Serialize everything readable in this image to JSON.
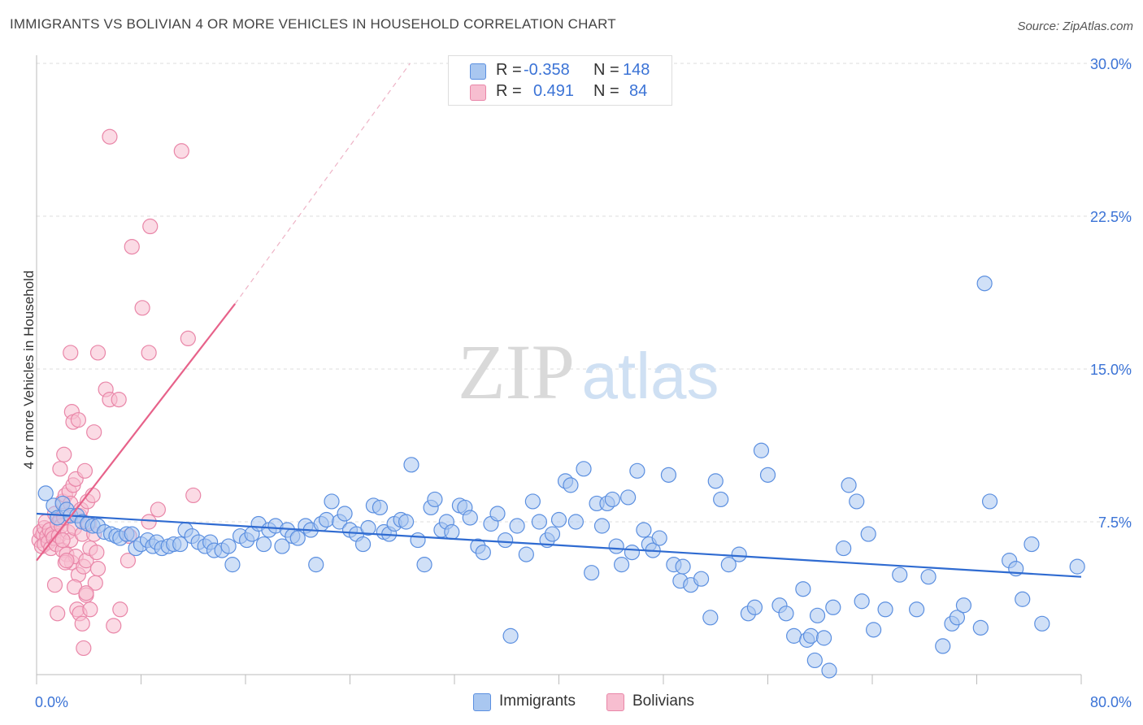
{
  "title": "IMMIGRANTS VS BOLIVIAN 4 OR MORE VEHICLES IN HOUSEHOLD CORRELATION CHART",
  "source": "Source: ZipAtlas.com",
  "watermark": {
    "zip": "ZIP",
    "atlas": "atlas"
  },
  "legend": {
    "r_label": "R =",
    "n_label": "N =",
    "rows": [
      {
        "r": "-0.358",
        "n": "148",
        "color": "#a9c7f0",
        "border": "#5b8fe0"
      },
      {
        "r": "0.491",
        "n": "84",
        "color": "#f7bed0",
        "border": "#e986a8"
      }
    ]
  },
  "bottom_legend": [
    "Immigrants",
    "Bolivians"
  ],
  "chart_data": {
    "type": "scatter",
    "xlabel": "",
    "ylabel": "4 or more Vehicles in Household",
    "xlim": [
      0,
      80
    ],
    "ylim": [
      0,
      30
    ],
    "x_tick_labels": [
      "0.0%",
      "80.0%"
    ],
    "y_ticks": [
      7.5,
      15.0,
      22.5,
      30.0
    ],
    "y_tick_labels": [
      "7.5%",
      "15.0%",
      "22.5%",
      "30.0%"
    ],
    "grid": true,
    "series": [
      {
        "name": "Immigrants",
        "color": "#5b8fe0",
        "fill": "#a9c7f0",
        "line_color": "#2f6bd1",
        "trend": {
          "x0": 0,
          "y0": 7.9,
          "x1": 80,
          "y1": 4.8
        },
        "points": [
          [
            0.7,
            8.9
          ],
          [
            1.3,
            8.3
          ],
          [
            1.6,
            7.7
          ],
          [
            2.0,
            8.4
          ],
          [
            2.3,
            8.1
          ],
          [
            2.6,
            7.8
          ],
          [
            3.1,
            7.8
          ],
          [
            3.5,
            7.5
          ],
          [
            3.9,
            7.4
          ],
          [
            4.3,
            7.3
          ],
          [
            4.7,
            7.3
          ],
          [
            5.2,
            7.0
          ],
          [
            5.7,
            6.9
          ],
          [
            6.1,
            6.8
          ],
          [
            6.4,
            6.7
          ],
          [
            6.9,
            6.9
          ],
          [
            7.3,
            6.9
          ],
          [
            7.6,
            6.2
          ],
          [
            8.0,
            6.4
          ],
          [
            8.5,
            6.6
          ],
          [
            8.9,
            6.3
          ],
          [
            9.2,
            6.5
          ],
          [
            9.6,
            6.2
          ],
          [
            10.1,
            6.3
          ],
          [
            10.5,
            6.4
          ],
          [
            11.0,
            6.4
          ],
          [
            11.4,
            7.1
          ],
          [
            11.9,
            6.8
          ],
          [
            12.4,
            6.5
          ],
          [
            12.9,
            6.3
          ],
          [
            13.3,
            6.5
          ],
          [
            13.6,
            6.1
          ],
          [
            14.2,
            6.1
          ],
          [
            14.7,
            6.3
          ],
          [
            15.0,
            5.4
          ],
          [
            15.6,
            6.8
          ],
          [
            16.1,
            6.6
          ],
          [
            16.5,
            6.9
          ],
          [
            17.0,
            7.4
          ],
          [
            17.4,
            6.4
          ],
          [
            17.8,
            7.1
          ],
          [
            18.3,
            7.3
          ],
          [
            18.8,
            6.3
          ],
          [
            19.2,
            7.1
          ],
          [
            19.6,
            6.8
          ],
          [
            20.0,
            6.7
          ],
          [
            20.6,
            7.3
          ],
          [
            21.0,
            7.1
          ],
          [
            21.4,
            5.4
          ],
          [
            21.8,
            7.4
          ],
          [
            22.2,
            7.6
          ],
          [
            22.6,
            8.5
          ],
          [
            23.2,
            7.5
          ],
          [
            23.6,
            7.9
          ],
          [
            24.0,
            7.1
          ],
          [
            24.5,
            6.9
          ],
          [
            25.0,
            6.4
          ],
          [
            25.4,
            7.2
          ],
          [
            25.8,
            8.3
          ],
          [
            26.3,
            8.2
          ],
          [
            26.6,
            7.0
          ],
          [
            27.0,
            6.9
          ],
          [
            27.4,
            7.4
          ],
          [
            27.9,
            7.6
          ],
          [
            28.3,
            7.5
          ],
          [
            28.7,
            10.3
          ],
          [
            29.2,
            6.6
          ],
          [
            29.7,
            5.4
          ],
          [
            30.2,
            8.2
          ],
          [
            30.5,
            8.6
          ],
          [
            31.0,
            7.1
          ],
          [
            31.4,
            7.5
          ],
          [
            31.8,
            7.0
          ],
          [
            32.4,
            8.3
          ],
          [
            32.8,
            8.2
          ],
          [
            33.2,
            7.7
          ],
          [
            33.8,
            6.3
          ],
          [
            34.2,
            6.0
          ],
          [
            34.8,
            7.4
          ],
          [
            35.3,
            7.9
          ],
          [
            35.9,
            6.6
          ],
          [
            36.3,
            1.9
          ],
          [
            36.8,
            7.3
          ],
          [
            37.5,
            5.9
          ],
          [
            38.0,
            8.5
          ],
          [
            38.5,
            7.5
          ],
          [
            39.1,
            6.6
          ],
          [
            39.5,
            6.9
          ],
          [
            40.0,
            7.6
          ],
          [
            40.5,
            9.5
          ],
          [
            40.9,
            9.3
          ],
          [
            41.3,
            7.5
          ],
          [
            41.9,
            10.1
          ],
          [
            42.5,
            5.0
          ],
          [
            42.9,
            8.4
          ],
          [
            43.3,
            7.3
          ],
          [
            43.7,
            8.4
          ],
          [
            44.1,
            8.6
          ],
          [
            44.4,
            6.3
          ],
          [
            44.8,
            5.4
          ],
          [
            45.3,
            8.7
          ],
          [
            45.6,
            6.0
          ],
          [
            46.0,
            10.0
          ],
          [
            46.5,
            7.1
          ],
          [
            46.9,
            6.4
          ],
          [
            47.2,
            6.1
          ],
          [
            47.7,
            6.7
          ],
          [
            48.4,
            9.8
          ],
          [
            48.8,
            5.4
          ],
          [
            49.3,
            4.6
          ],
          [
            49.5,
            5.3
          ],
          [
            50.1,
            4.4
          ],
          [
            50.9,
            4.7
          ],
          [
            51.6,
            2.8
          ],
          [
            52.0,
            9.5
          ],
          [
            52.4,
            8.6
          ],
          [
            53.0,
            5.4
          ],
          [
            53.8,
            5.9
          ],
          [
            54.5,
            3.0
          ],
          [
            55.0,
            3.3
          ],
          [
            55.5,
            11.0
          ],
          [
            56.0,
            9.8
          ],
          [
            56.9,
            3.4
          ],
          [
            57.4,
            3.0
          ],
          [
            58.0,
            1.9
          ],
          [
            58.7,
            4.2
          ],
          [
            59.0,
            1.7
          ],
          [
            59.3,
            1.9
          ],
          [
            59.8,
            2.9
          ],
          [
            60.3,
            1.8
          ],
          [
            61.0,
            3.3
          ],
          [
            61.8,
            6.2
          ],
          [
            62.2,
            9.3
          ],
          [
            62.8,
            8.5
          ],
          [
            63.2,
            3.6
          ],
          [
            63.7,
            6.9
          ],
          [
            64.1,
            2.2
          ],
          [
            65.0,
            3.2
          ],
          [
            66.1,
            4.9
          ],
          [
            67.4,
            3.2
          ],
          [
            68.3,
            4.8
          ],
          [
            69.4,
            1.4
          ],
          [
            70.1,
            2.5
          ],
          [
            70.5,
            2.8
          ],
          [
            71.0,
            3.4
          ],
          [
            72.3,
            2.3
          ],
          [
            73.0,
            8.5
          ],
          [
            74.5,
            5.6
          ],
          [
            75.0,
            5.2
          ],
          [
            75.5,
            3.7
          ],
          [
            76.2,
            6.4
          ],
          [
            77.0,
            2.5
          ],
          [
            79.7,
            5.3
          ],
          [
            72.6,
            19.2
          ],
          [
            59.6,
            0.7
          ],
          [
            60.7,
            0.2
          ]
        ]
      },
      {
        "name": "Bolivians",
        "color": "#e986a8",
        "fill": "#f7bed0",
        "line_color": "#e7628a",
        "trend": {
          "x0": 0,
          "y0": 5.6,
          "x1": 15.2,
          "y1": 18.2
        },
        "trend_dashed": {
          "x0": 15.2,
          "y0": 18.2,
          "x1": 28.6,
          "y1": 30.0
        },
        "points": [
          [
            0.2,
            6.6
          ],
          [
            0.3,
            7.0
          ],
          [
            0.4,
            6.3
          ],
          [
            0.5,
            6.9
          ],
          [
            0.6,
            7.2
          ],
          [
            0.6,
            6.4
          ],
          [
            0.7,
            7.5
          ],
          [
            0.8,
            6.8
          ],
          [
            0.9,
            6.5
          ],
          [
            1.0,
            7.1
          ],
          [
            1.1,
            6.2
          ],
          [
            1.2,
            6.9
          ],
          [
            1.3,
            6.7
          ],
          [
            1.4,
            7.9
          ],
          [
            1.5,
            6.4
          ],
          [
            1.6,
            7.4
          ],
          [
            1.7,
            6.8
          ],
          [
            1.8,
            7.6
          ],
          [
            1.9,
            7.3
          ],
          [
            2.0,
            8.5
          ],
          [
            2.0,
            6.1
          ],
          [
            2.1,
            7.7
          ],
          [
            2.2,
            8.8
          ],
          [
            2.3,
            5.9
          ],
          [
            2.4,
            7.0
          ],
          [
            2.5,
            9.0
          ],
          [
            2.6,
            8.4
          ],
          [
            2.6,
            6.6
          ],
          [
            2.7,
            5.5
          ],
          [
            2.8,
            9.3
          ],
          [
            2.9,
            7.2
          ],
          [
            3.0,
            5.8
          ],
          [
            3.0,
            9.6
          ],
          [
            3.2,
            4.9
          ],
          [
            3.3,
            7.8
          ],
          [
            3.4,
            8.1
          ],
          [
            3.5,
            6.9
          ],
          [
            3.6,
            5.3
          ],
          [
            3.7,
            10.0
          ],
          [
            3.8,
            5.6
          ],
          [
            3.9,
            8.5
          ],
          [
            4.0,
            7.4
          ],
          [
            4.1,
            6.2
          ],
          [
            4.3,
            8.8
          ],
          [
            4.4,
            6.9
          ],
          [
            4.5,
            4.5
          ],
          [
            4.6,
            6.0
          ],
          [
            4.7,
            5.2
          ],
          [
            1.4,
            4.4
          ],
          [
            1.6,
            3.0
          ],
          [
            2.2,
            5.5
          ],
          [
            2.3,
            5.6
          ],
          [
            2.9,
            4.3
          ],
          [
            3.1,
            3.2
          ],
          [
            3.3,
            3.0
          ],
          [
            3.5,
            2.5
          ],
          [
            3.6,
            1.3
          ],
          [
            3.8,
            3.9
          ],
          [
            4.1,
            3.2
          ],
          [
            5.9,
            2.4
          ],
          [
            6.4,
            3.2
          ],
          [
            7.0,
            5.6
          ],
          [
            7.1,
            6.8
          ],
          [
            8.6,
            7.5
          ],
          [
            9.3,
            8.1
          ],
          [
            12.0,
            8.8
          ],
          [
            1.8,
            10.1
          ],
          [
            2.1,
            10.8
          ],
          [
            2.7,
            12.9
          ],
          [
            2.8,
            12.4
          ],
          [
            2.6,
            15.8
          ],
          [
            3.2,
            12.5
          ],
          [
            4.4,
            11.9
          ],
          [
            4.7,
            15.8
          ],
          [
            5.3,
            14.0
          ],
          [
            5.6,
            13.5
          ],
          [
            6.3,
            13.5
          ],
          [
            7.3,
            21.0
          ],
          [
            8.1,
            18.0
          ],
          [
            8.6,
            15.8
          ],
          [
            8.7,
            22.0
          ],
          [
            11.6,
            16.5
          ],
          [
            11.1,
            25.7
          ],
          [
            5.6,
            26.4
          ],
          [
            3.8,
            4.0
          ],
          [
            2.0,
            6.6
          ]
        ]
      }
    ]
  }
}
